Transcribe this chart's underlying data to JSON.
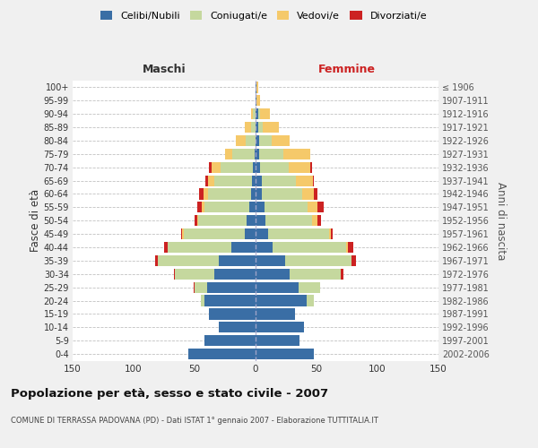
{
  "age_groups": [
    "0-4",
    "5-9",
    "10-14",
    "15-19",
    "20-24",
    "25-29",
    "30-34",
    "35-39",
    "40-44",
    "45-49",
    "50-54",
    "55-59",
    "60-64",
    "65-69",
    "70-74",
    "75-79",
    "80-84",
    "85-89",
    "90-94",
    "95-99",
    "100+"
  ],
  "birth_years": [
    "2002-2006",
    "1997-2001",
    "1992-1996",
    "1987-1991",
    "1982-1986",
    "1977-1981",
    "1972-1976",
    "1967-1971",
    "1962-1966",
    "1957-1961",
    "1952-1956",
    "1947-1951",
    "1942-1946",
    "1937-1941",
    "1932-1936",
    "1927-1931",
    "1922-1926",
    "1917-1921",
    "1912-1916",
    "1907-1911",
    "≤ 1906"
  ],
  "maschi_celibe": [
    55,
    42,
    30,
    38,
    42,
    40,
    34,
    30,
    20,
    9,
    7,
    5,
    4,
    3,
    2,
    1,
    0,
    0,
    0,
    0,
    0
  ],
  "maschi_coniugato": [
    0,
    0,
    0,
    0,
    3,
    10,
    32,
    50,
    52,
    50,
    40,
    37,
    35,
    31,
    27,
    18,
    8,
    4,
    2,
    0,
    0
  ],
  "maschi_vedovo": [
    0,
    0,
    0,
    0,
    0,
    0,
    0,
    0,
    0,
    1,
    1,
    2,
    4,
    5,
    7,
    6,
    8,
    5,
    2,
    0,
    0
  ],
  "maschi_divorziato": [
    0,
    0,
    0,
    0,
    0,
    1,
    1,
    2,
    3,
    1,
    2,
    4,
    3,
    2,
    2,
    0,
    0,
    0,
    0,
    0,
    0
  ],
  "femmine_nubile": [
    48,
    36,
    40,
    32,
    42,
    35,
    28,
    24,
    14,
    10,
    8,
    7,
    5,
    5,
    4,
    3,
    3,
    2,
    2,
    1,
    1
  ],
  "femmine_coniugata": [
    0,
    0,
    0,
    0,
    6,
    18,
    42,
    55,
    60,
    50,
    38,
    36,
    33,
    28,
    23,
    20,
    10,
    4,
    2,
    0,
    0
  ],
  "femmine_vedova": [
    0,
    0,
    0,
    0,
    0,
    0,
    0,
    0,
    2,
    2,
    5,
    8,
    10,
    14,
    18,
    22,
    15,
    13,
    8,
    3,
    1
  ],
  "femmine_divorziata": [
    0,
    0,
    0,
    0,
    0,
    0,
    2,
    3,
    4,
    1,
    3,
    5,
    3,
    1,
    1,
    0,
    0,
    0,
    0,
    0,
    0
  ],
  "colors": {
    "celibe": "#3a6ea5",
    "coniugato": "#c5d89e",
    "vedovo": "#f5c96a",
    "divorziato": "#cc2222"
  },
  "xlim": 150,
  "title": "Popolazione per età, sesso e stato civile - 2007",
  "subtitle": "COMUNE DI TERRASSA PADOVANA (PD) - Dati ISTAT 1° gennaio 2007 - Elaborazione TUTTITALIA.IT",
  "ylabel_left": "Fasce di età",
  "ylabel_right": "Anni di nascita",
  "header_left": "Maschi",
  "header_right": "Femmine",
  "bg_color": "#f0f0f0",
  "plot_bg": "#ffffff",
  "legend_labels": [
    "Celibi/Nubili",
    "Coniugati/e",
    "Vedovi/e",
    "Divorziati/e"
  ]
}
